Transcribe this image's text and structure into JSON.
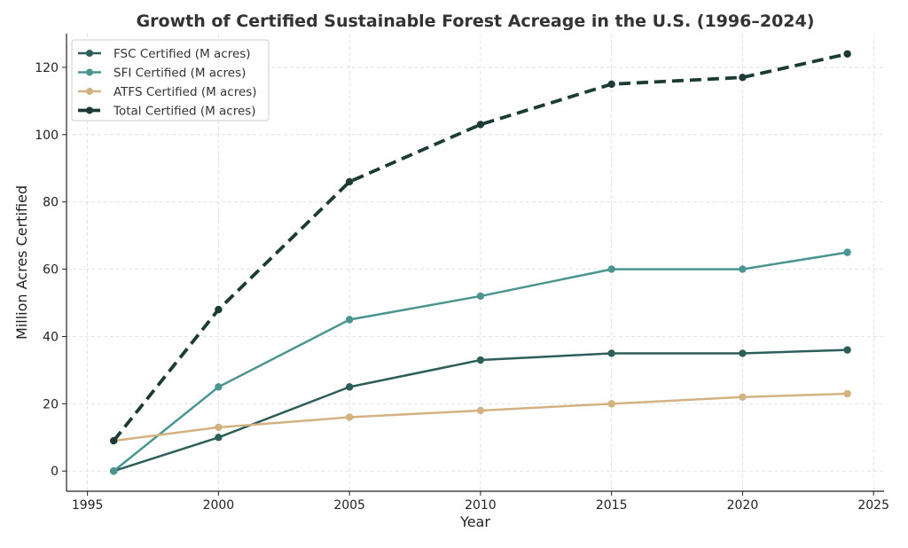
{
  "chart_data": {
    "type": "line",
    "title": "Growth of Certified Sustainable Forest Acreage in the U.S. (1996–2024)",
    "xlabel": "Year",
    "ylabel": "Million Acres Certified",
    "x": [
      1996,
      2000,
      2005,
      2010,
      2015,
      2020,
      2024
    ],
    "xlim": [
      1994.2,
      2025.4
    ],
    "ylim": [
      -6,
      130
    ],
    "xticks": [
      1995,
      2000,
      2005,
      2010,
      2015,
      2020,
      2025
    ],
    "yticks": [
      0,
      20,
      40,
      60,
      80,
      100,
      120
    ],
    "grid": true,
    "legend": "top-left",
    "series": [
      {
        "name": "FSC Certified (M acres)",
        "color": "#2d5f5a",
        "dashed": false,
        "values": [
          0,
          10,
          25,
          33,
          35,
          35,
          36
        ]
      },
      {
        "name": "SFI Certified (M acres)",
        "color": "#4a958f",
        "dashed": false,
        "values": [
          0,
          25,
          45,
          52,
          60,
          60,
          65
        ]
      },
      {
        "name": "ATFS Certified (M acres)",
        "color": "#d3b282",
        "dashed": false,
        "values": [
          9,
          13,
          16,
          18,
          20,
          22,
          23
        ]
      },
      {
        "name": "Total Certified (M acres)",
        "color": "#1d3b35",
        "dashed": true,
        "values": [
          9,
          48,
          86,
          103,
          115,
          117,
          124
        ]
      }
    ]
  }
}
